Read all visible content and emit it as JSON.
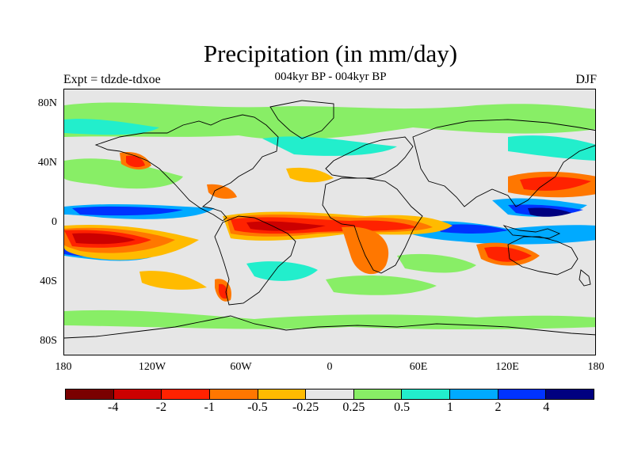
{
  "title": "Precipitation (in mm/day)",
  "subtitle": "004kyr BP - 004kyr BP",
  "left_label": "Expt = tdzde-tdxoe",
  "right_label": "DJF",
  "y_axis_labels": [
    "80N",
    "40N",
    "0",
    "40S",
    "80S"
  ],
  "x_axis_labels": [
    "180",
    "120W",
    "60W",
    "0",
    "60E",
    "120E",
    "180"
  ],
  "colorbar": {
    "colors": [
      "#7a0000",
      "#cc0000",
      "#ff2200",
      "#ff7700",
      "#ffbb00",
      "#e6e6e6",
      "#88ee66",
      "#22eecc",
      "#00aaff",
      "#0033ff",
      "#000080"
    ],
    "labels": [
      "-4",
      "-2",
      "-1",
      "-0.5",
      "-0.25",
      "0.25",
      "0.5",
      "1",
      "2",
      "4"
    ]
  },
  "map_layers": {
    "green": "#88ee66",
    "cyan": "#22eecc",
    "lightblue": "#00aaff",
    "blue": "#0033ff",
    "darkblue": "#000080",
    "yellow": "#ffbb00",
    "orange": "#ff7700",
    "red": "#ff2200",
    "darkred": "#cc0000",
    "maroon": "#7a0000",
    "coast": "#000000"
  }
}
